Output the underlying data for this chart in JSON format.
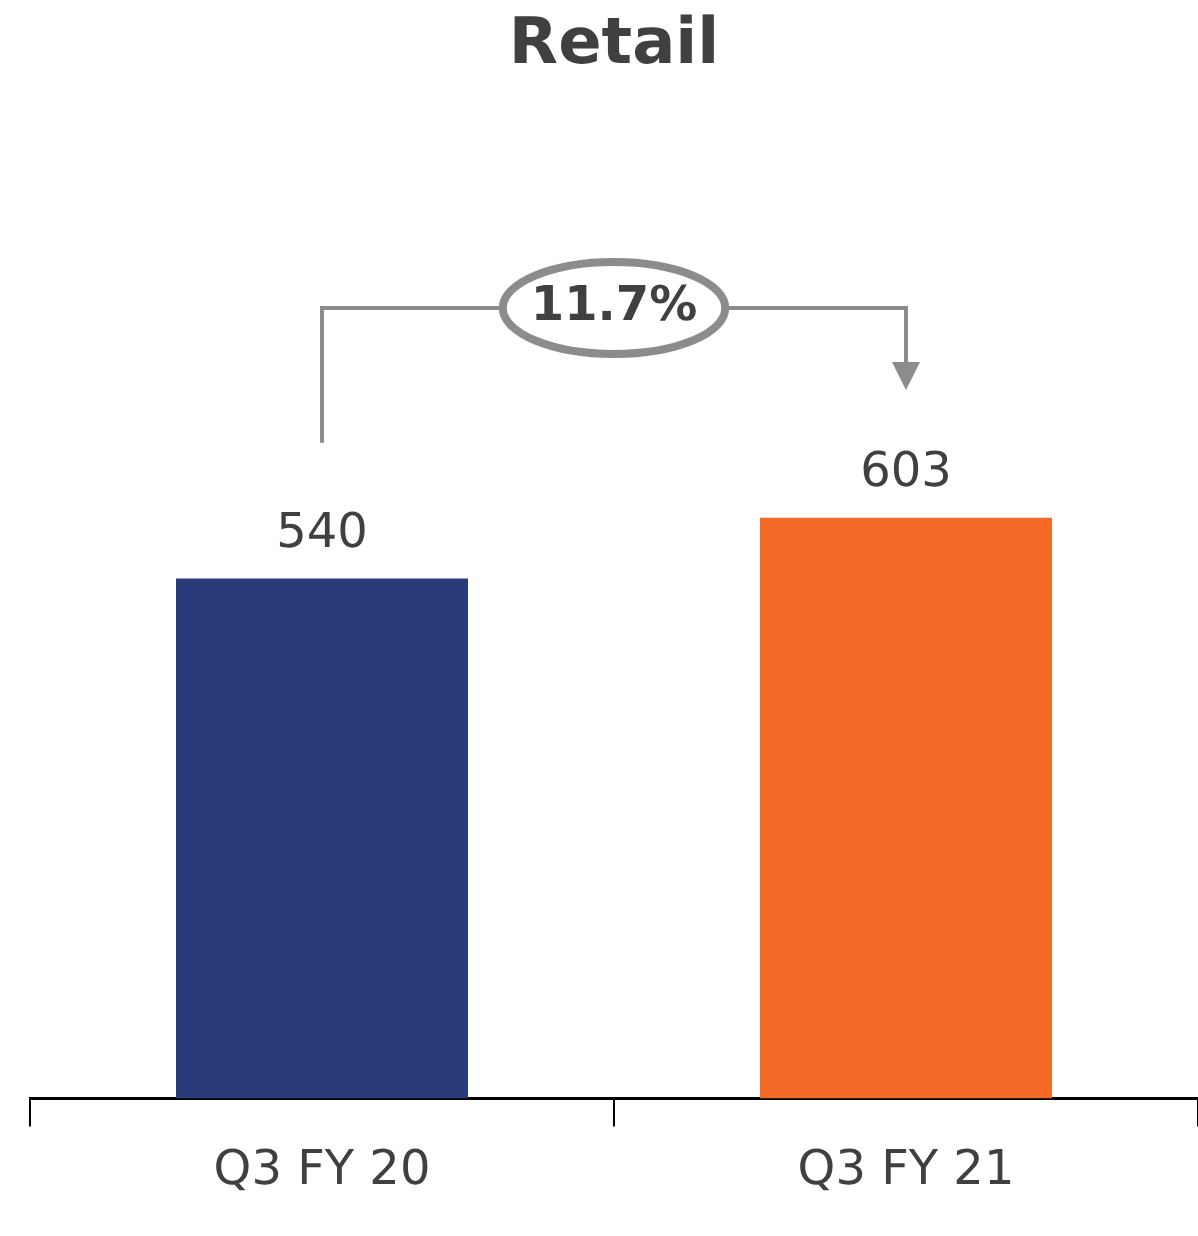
{
  "chart_data": {
    "type": "bar",
    "title": "Retail",
    "categories": [
      "Q3 FY 20",
      "Q3 FY 21"
    ],
    "values": [
      540,
      603
    ],
    "colors": [
      "#2b3a78",
      "#f26a25"
    ],
    "data_labels": true,
    "legend": false,
    "grid": false,
    "annotations": [
      "11.7%"
    ]
  }
}
